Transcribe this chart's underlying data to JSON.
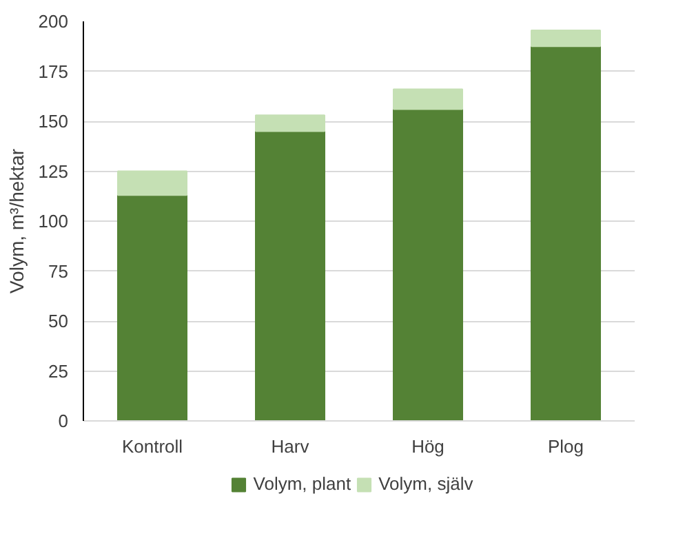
{
  "chart_data": {
    "type": "bar",
    "stacked": true,
    "ylabel": "Volym, m³/hektar",
    "categories": [
      "Kontroll",
      "Harv",
      "Hög",
      "Plog"
    ],
    "series": [
      {
        "name": "Volym, plant",
        "color": "#548235",
        "values": [
          113,
          145,
          156,
          187.5
        ]
      },
      {
        "name": "Volym, själv",
        "color": "#c5e0b4",
        "values": [
          12,
          8,
          10,
          8
        ]
      }
    ],
    "ylim": [
      0,
      200
    ],
    "yticks": [
      0,
      25,
      50,
      75,
      100,
      125,
      150,
      175,
      200
    ],
    "grid": "y",
    "legend": "bottom"
  }
}
